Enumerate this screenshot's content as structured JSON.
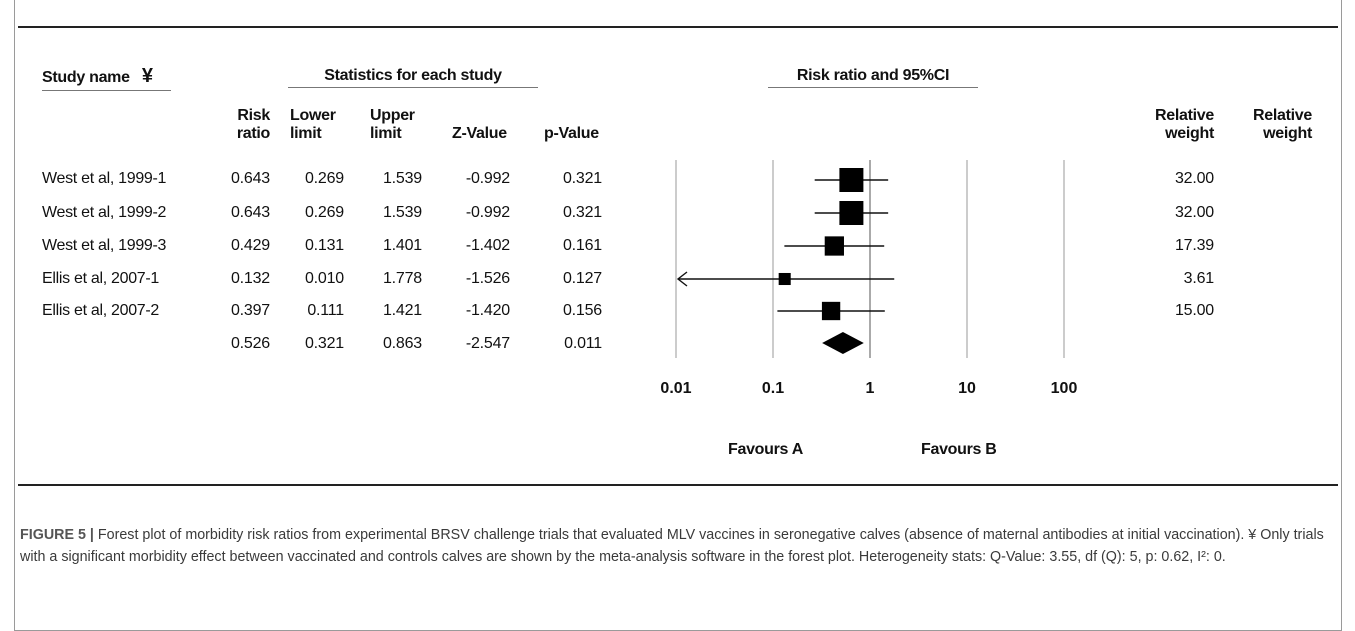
{
  "headers": {
    "study_name": "Study name",
    "study_name_mark": "¥",
    "stats_group": "Statistics for each study",
    "plot_group": "Risk ratio and 95%CI",
    "risk_ratio": [
      "Risk",
      "ratio"
    ],
    "lower_limit": [
      "Lower",
      "limit"
    ],
    "upper_limit": [
      "Upper",
      "limit"
    ],
    "z_value": "Z-Value",
    "p_value": "p-Value",
    "relative_weight_1": [
      "Relative",
      "weight"
    ],
    "relative_weight_2": [
      "Relative",
      "weight"
    ]
  },
  "rows": [
    {
      "study": "West et al, 1999-1",
      "rr": "0.643",
      "lower": "0.269",
      "upper": "1.539",
      "z": "-0.992",
      "p": "0.321",
      "weight": "32.00"
    },
    {
      "study": "West et al, 1999-2",
      "rr": "0.643",
      "lower": "0.269",
      "upper": "1.539",
      "z": "-0.992",
      "p": "0.321",
      "weight": "32.00"
    },
    {
      "study": "West et al, 1999-3",
      "rr": "0.429",
      "lower": "0.131",
      "upper": "1.401",
      "z": "-1.402",
      "p": "0.161",
      "weight": "17.39"
    },
    {
      "study": "Ellis et al, 2007-1",
      "rr": "0.132",
      "lower": "0.010",
      "upper": "1.778",
      "z": "-1.526",
      "p": "0.127",
      "weight": "3.61"
    },
    {
      "study": "Ellis et al, 2007-2",
      "rr": "0.397",
      "lower": "0.111",
      "upper": "1.421",
      "z": "-1.420",
      "p": "0.156",
      "weight": "15.00"
    }
  ],
  "summary": {
    "rr": "0.526",
    "lower": "0.321",
    "upper": "0.863",
    "z": "-2.547",
    "p": "0.011"
  },
  "favours": {
    "left": "Favours A",
    "right": "Favours B"
  },
  "caption": {
    "label": "FIGURE 5 |",
    "text": "Forest plot of morbidity risk ratios from experimental BRSV challenge trials that evaluated MLV vaccines in seronegative calves (absence of maternal antibodies at initial vaccination). ¥ Only trials with a significant morbidity effect between vaccinated and controls calves are shown by the meta-analysis software in the forest plot. Heterogeneity stats: Q-Value: 3.55, df (Q): 5, p: 0.62, I²: 0."
  },
  "chart_data": {
    "type": "forest",
    "scale": "log",
    "xlim": [
      0.01,
      100
    ],
    "ticks": [
      0.01,
      0.1,
      1,
      10,
      100
    ],
    "tick_labels": [
      "0.01",
      "0.1",
      "1",
      "10",
      "100"
    ],
    "studies": [
      {
        "name": "West et al, 1999-1",
        "estimate": 0.643,
        "lower": 0.269,
        "upper": 1.539,
        "weight": 32.0
      },
      {
        "name": "West et al, 1999-2",
        "estimate": 0.643,
        "lower": 0.269,
        "upper": 1.539,
        "weight": 32.0
      },
      {
        "name": "West et al, 1999-3",
        "estimate": 0.429,
        "lower": 0.131,
        "upper": 1.401,
        "weight": 17.39
      },
      {
        "name": "Ellis et al, 2007-1",
        "estimate": 0.132,
        "lower": 0.01,
        "upper": 1.778,
        "weight": 3.61
      },
      {
        "name": "Ellis et al, 2007-2",
        "estimate": 0.397,
        "lower": 0.111,
        "upper": 1.421,
        "weight": 15.0
      }
    ],
    "summary": {
      "estimate": 0.526,
      "lower": 0.321,
      "upper": 0.863
    },
    "lower_arrow_study": "Ellis et al, 2007-1"
  }
}
